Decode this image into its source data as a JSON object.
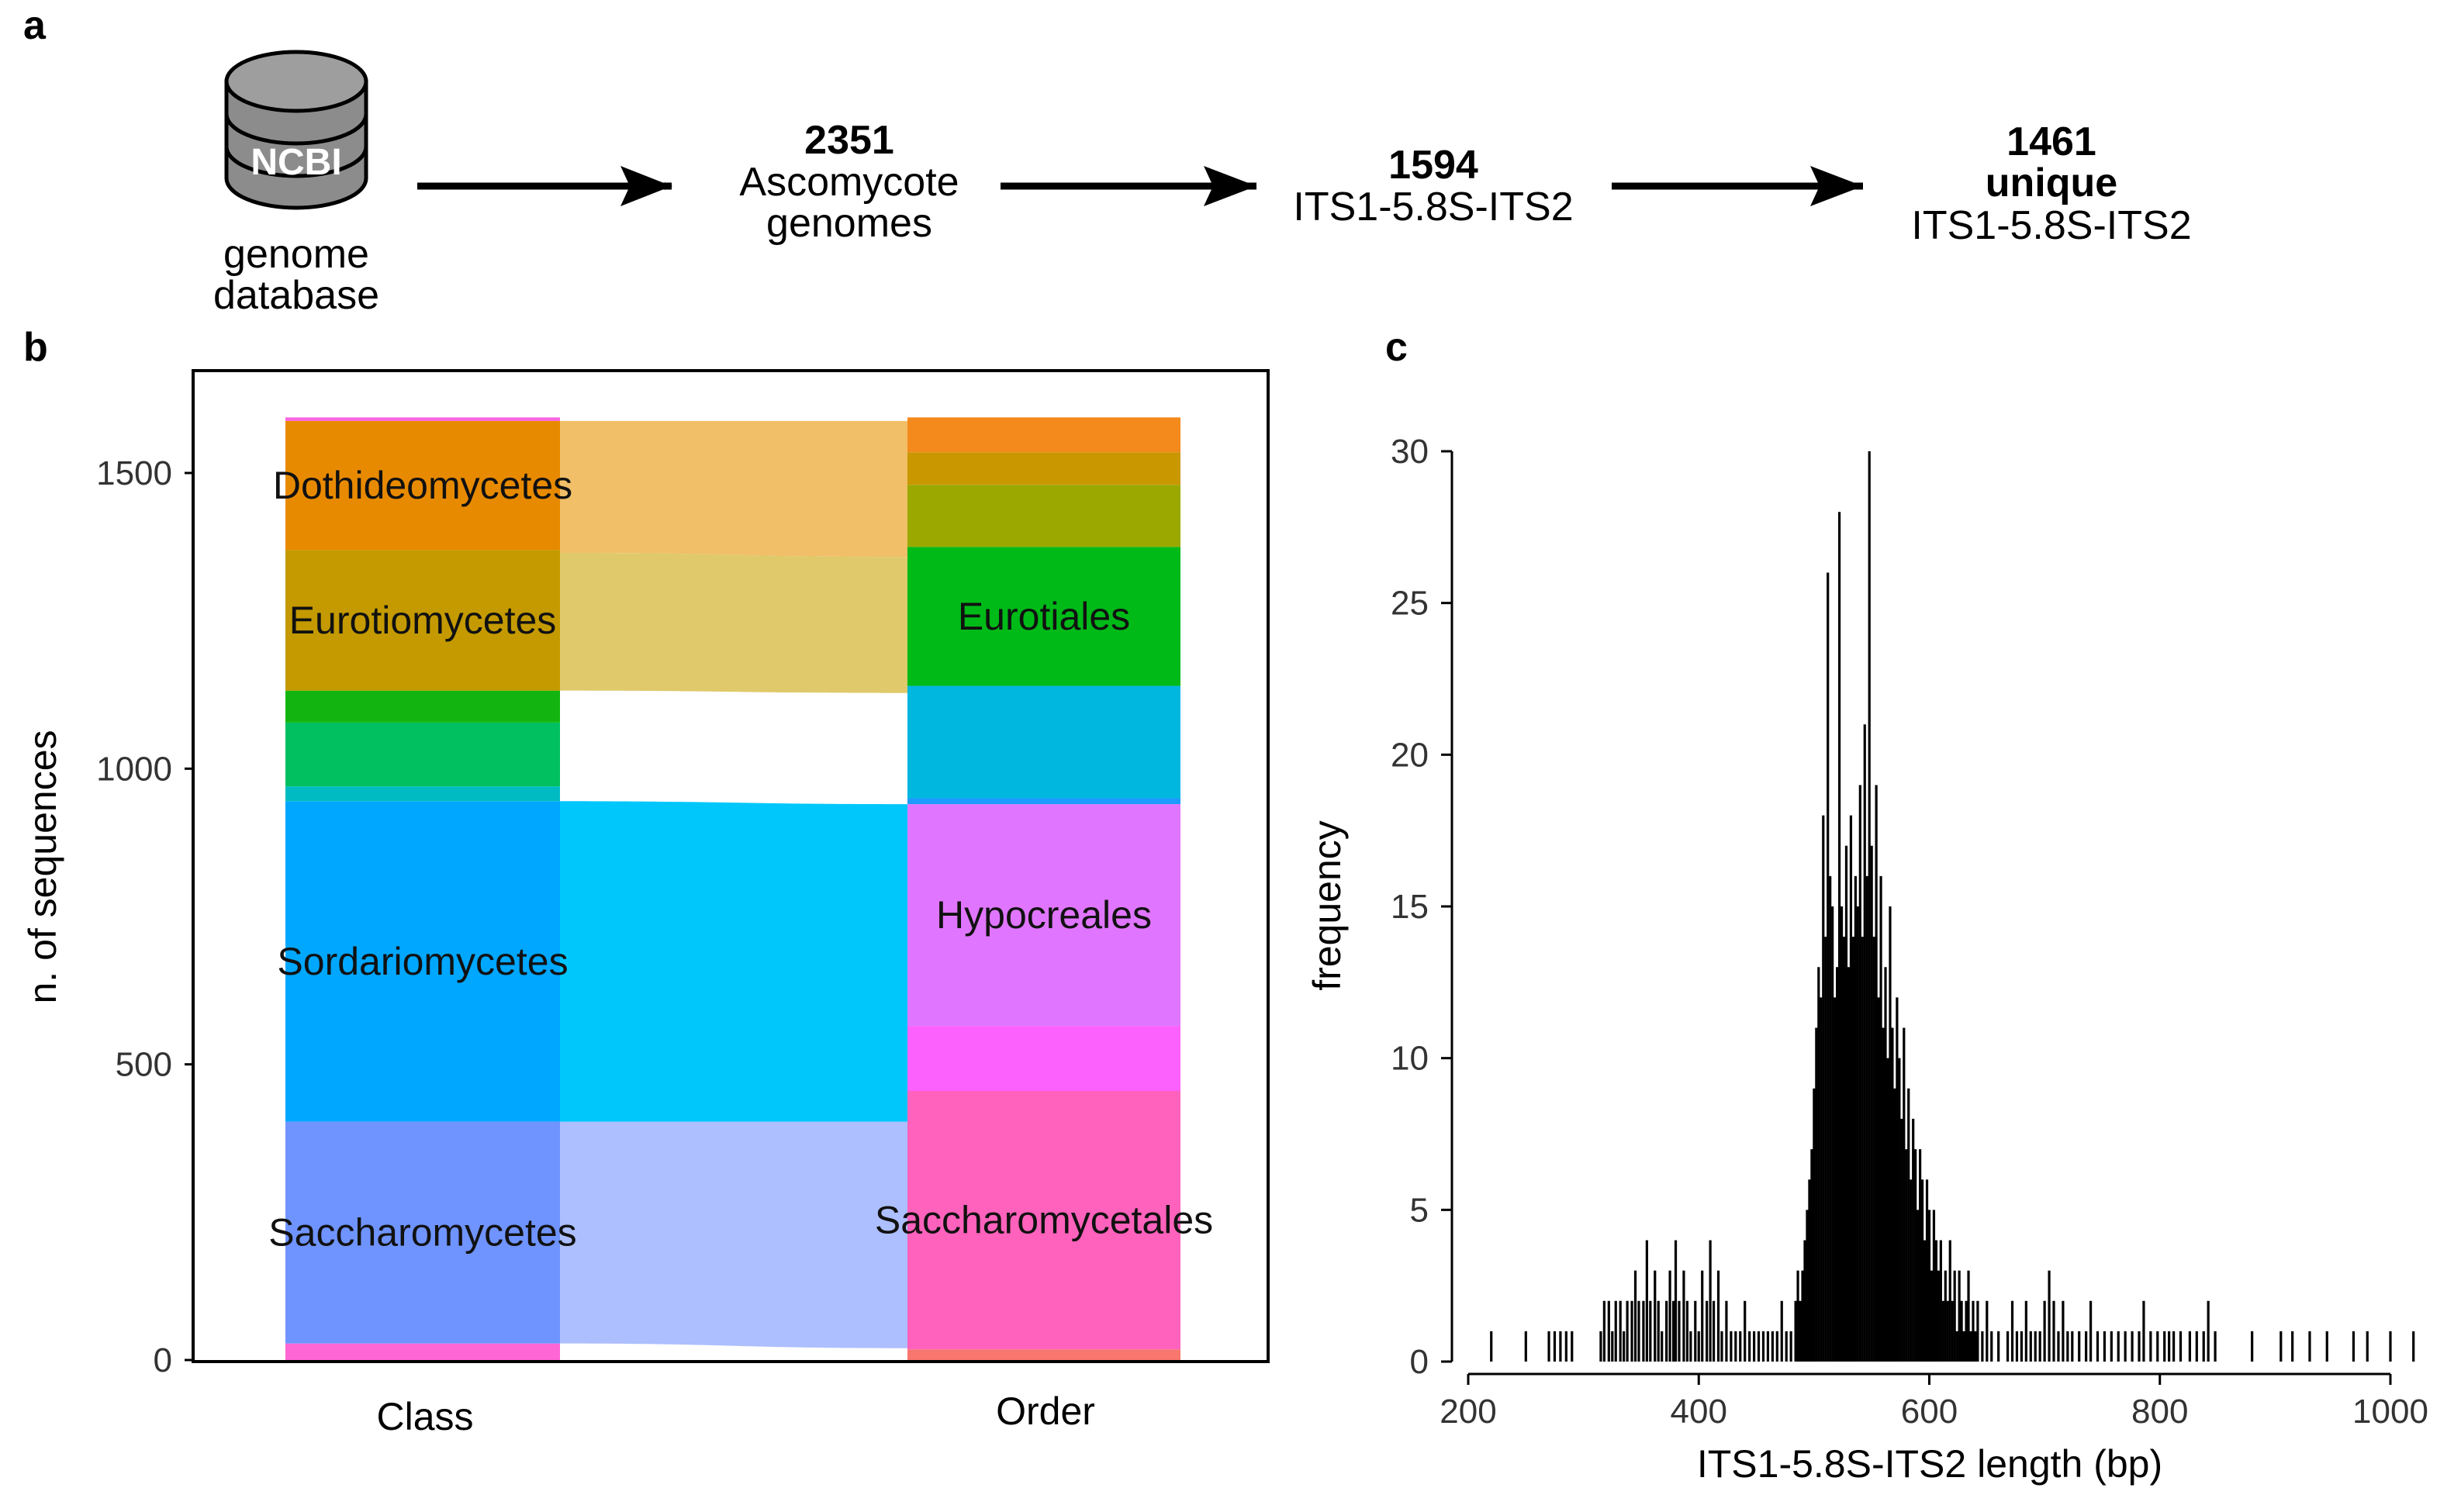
{
  "figure": {
    "panel_a": {
      "letter": "a",
      "db_icon_label": "NCBI",
      "db_caption_line1": "genome",
      "db_caption_line2": "database",
      "step1_number": "2351",
      "step1_line1": "Ascomycote",
      "step1_line2": "genomes",
      "step2_number": "1594",
      "step2_line1": "ITS1-5.8S-ITS2",
      "step3_number": "1461",
      "step3_bold": "unique",
      "step3_line1": "ITS1-5.8S-ITS2"
    },
    "panel_b": {
      "letter": "b"
    },
    "panel_c": {
      "letter": "c"
    }
  },
  "chart_data": [
    {
      "type": "alluvial",
      "panel": "b",
      "title": "",
      "xlabel": "",
      "ylabel": "n. of sequences",
      "ylim": [
        0,
        1600
      ],
      "yticks": [
        0,
        500,
        1000,
        1500
      ],
      "axes": [
        "Class",
        "Order"
      ],
      "class_strata": [
        {
          "name": "",
          "bottom": 0,
          "top": 28,
          "color": "#ff66d5"
        },
        {
          "name": "Saccharomycetes",
          "bottom": 28,
          "top": 403,
          "color": "#6f94ff"
        },
        {
          "name": "Sordariomycetes",
          "bottom": 403,
          "top": 945,
          "color": "#00a7ff"
        },
        {
          "name": "",
          "bottom": 945,
          "top": 970,
          "color": "#00bcc2"
        },
        {
          "name": "",
          "bottom": 970,
          "top": 1078,
          "color": "#00c060"
        },
        {
          "name": "",
          "bottom": 1078,
          "top": 1132,
          "color": "#12b510"
        },
        {
          "name": "Eurotiomycetes",
          "bottom": 1132,
          "top": 1370,
          "color": "#c49a00"
        },
        {
          "name": "Dothideomycetes",
          "bottom": 1370,
          "top": 1588,
          "color": "#e88a00"
        },
        {
          "name": "",
          "bottom": 1588,
          "top": 1594,
          "color": "#f766e3"
        }
      ],
      "order_strata": [
        {
          "name": "",
          "bottom": 0,
          "top": 18,
          "color": "#f8766d"
        },
        {
          "name": "Saccharomycetales",
          "bottom": 18,
          "top": 455,
          "color": "#ff62bc"
        },
        {
          "name": "",
          "bottom": 455,
          "top": 565,
          "color": "#fc61fd"
        },
        {
          "name": "Hypocreales",
          "bottom": 565,
          "top": 940,
          "color": "#e076ff"
        },
        {
          "name": "",
          "bottom": 940,
          "top": 950,
          "color": "#1d9bff"
        },
        {
          "name": "",
          "bottom": 950,
          "top": 1140,
          "color": "#00b7e0"
        },
        {
          "name": "Eurotiales",
          "bottom": 1140,
          "top": 1375,
          "color": "#00ba18"
        },
        {
          "name": "",
          "bottom": 1375,
          "top": 1480,
          "color": "#9aa800"
        },
        {
          "name": "",
          "bottom": 1480,
          "top": 1535,
          "color": "#c99800"
        },
        {
          "name": "",
          "bottom": 1535,
          "top": 1594,
          "color": "#f48a1c"
        }
      ],
      "flows": [
        {
          "from": "Saccharomycetes",
          "left": [
            28,
            403
          ],
          "right": [
            20,
            403
          ],
          "color": "#adbfff"
        },
        {
          "from": "Sordariomycetes",
          "left": [
            403,
            945
          ],
          "right": [
            403,
            940
          ],
          "color": "#00c7fb"
        },
        {
          "from": "Eurotiomycetes",
          "left": [
            1132,
            1365
          ],
          "right": [
            1128,
            1358
          ],
          "color": "#dfc96a"
        },
        {
          "from": "Dothideomycetes",
          "left": [
            1365,
            1588
          ],
          "right": [
            1358,
            1588
          ],
          "color": "#f0bf68"
        }
      ]
    },
    {
      "type": "histogram",
      "panel": "c",
      "title": "",
      "xlabel": "ITS1-5.8S-ITS2 length (bp)",
      "ylabel": "frequency",
      "xlim": [
        200,
        1000
      ],
      "ylim": [
        0,
        30
      ],
      "xticks": [
        200,
        400,
        600,
        800,
        1000
      ],
      "yticks": [
        0,
        5,
        10,
        15,
        20,
        25,
        30
      ],
      "bins": [
        [
          220,
          1
        ],
        [
          250,
          1
        ],
        [
          270,
          1
        ],
        [
          275,
          1
        ],
        [
          280,
          1
        ],
        [
          285,
          1
        ],
        [
          290,
          1
        ],
        [
          315,
          1
        ],
        [
          318,
          2
        ],
        [
          322,
          2
        ],
        [
          325,
          1
        ],
        [
          328,
          2
        ],
        [
          332,
          2
        ],
        [
          335,
          1
        ],
        [
          338,
          2
        ],
        [
          342,
          2
        ],
        [
          345,
          3
        ],
        [
          348,
          2
        ],
        [
          352,
          2
        ],
        [
          355,
          4
        ],
        [
          358,
          2
        ],
        [
          362,
          3
        ],
        [
          365,
          2
        ],
        [
          368,
          1
        ],
        [
          372,
          2
        ],
        [
          375,
          3
        ],
        [
          378,
          2
        ],
        [
          380,
          4
        ],
        [
          383,
          2
        ],
        [
          387,
          3
        ],
        [
          390,
          2
        ],
        [
          393,
          1
        ],
        [
          397,
          2
        ],
        [
          400,
          1
        ],
        [
          403,
          3
        ],
        [
          407,
          2
        ],
        [
          410,
          4
        ],
        [
          413,
          2
        ],
        [
          417,
          3
        ],
        [
          420,
          1
        ],
        [
          424,
          2
        ],
        [
          428,
          1
        ],
        [
          432,
          1
        ],
        [
          436,
          1
        ],
        [
          440,
          2
        ],
        [
          444,
          1
        ],
        [
          448,
          1
        ],
        [
          452,
          1
        ],
        [
          456,
          1
        ],
        [
          460,
          1
        ],
        [
          464,
          1
        ],
        [
          468,
          1
        ],
        [
          472,
          2
        ],
        [
          476,
          1
        ],
        [
          480,
          1
        ],
        [
          484,
          2
        ],
        [
          486,
          3
        ],
        [
          488,
          2
        ],
        [
          490,
          3
        ],
        [
          492,
          4
        ],
        [
          494,
          5
        ],
        [
          496,
          6
        ],
        [
          498,
          7
        ],
        [
          500,
          9
        ],
        [
          502,
          11
        ],
        [
          504,
          13
        ],
        [
          506,
          12
        ],
        [
          508,
          18
        ],
        [
          510,
          14
        ],
        [
          512,
          26
        ],
        [
          514,
          16
        ],
        [
          516,
          15
        ],
        [
          518,
          12
        ],
        [
          520,
          13
        ],
        [
          522,
          28
        ],
        [
          524,
          15
        ],
        [
          526,
          14
        ],
        [
          528,
          17
        ],
        [
          530,
          13
        ],
        [
          532,
          18
        ],
        [
          534,
          14
        ],
        [
          536,
          16
        ],
        [
          538,
          15
        ],
        [
          540,
          19
        ],
        [
          542,
          14
        ],
        [
          544,
          21
        ],
        [
          546,
          16
        ],
        [
          548,
          30
        ],
        [
          550,
          17
        ],
        [
          552,
          14
        ],
        [
          554,
          19
        ],
        [
          556,
          12
        ],
        [
          558,
          16
        ],
        [
          560,
          11
        ],
        [
          562,
          13
        ],
        [
          564,
          10
        ],
        [
          566,
          15
        ],
        [
          568,
          11
        ],
        [
          570,
          9
        ],
        [
          572,
          12
        ],
        [
          574,
          10
        ],
        [
          576,
          8
        ],
        [
          578,
          11
        ],
        [
          580,
          7
        ],
        [
          582,
          9
        ],
        [
          584,
          6
        ],
        [
          586,
          8
        ],
        [
          588,
          7
        ],
        [
          590,
          5
        ],
        [
          592,
          7
        ],
        [
          594,
          6
        ],
        [
          596,
          4
        ],
        [
          598,
          6
        ],
        [
          600,
          5
        ],
        [
          602,
          3
        ],
        [
          604,
          5
        ],
        [
          606,
          4
        ],
        [
          608,
          3
        ],
        [
          610,
          4
        ],
        [
          612,
          2
        ],
        [
          614,
          3
        ],
        [
          616,
          2
        ],
        [
          618,
          4
        ],
        [
          620,
          2
        ],
        [
          622,
          3
        ],
        [
          624,
          1
        ],
        [
          626,
          3
        ],
        [
          628,
          2
        ],
        [
          630,
          1
        ],
        [
          632,
          2
        ],
        [
          634,
          3
        ],
        [
          636,
          1
        ],
        [
          638,
          2
        ],
        [
          640,
          1
        ],
        [
          642,
          2
        ],
        [
          646,
          1
        ],
        [
          650,
          2
        ],
        [
          654,
          1
        ],
        [
          660,
          1
        ],
        [
          668,
          1
        ],
        [
          672,
          2
        ],
        [
          676,
          1
        ],
        [
          680,
          1
        ],
        [
          684,
          2
        ],
        [
          688,
          1
        ],
        [
          692,
          1
        ],
        [
          696,
          1
        ],
        [
          700,
          2
        ],
        [
          704,
          3
        ],
        [
          708,
          2
        ],
        [
          712,
          1
        ],
        [
          716,
          2
        ],
        [
          720,
          1
        ],
        [
          724,
          1
        ],
        [
          730,
          1
        ],
        [
          736,
          1
        ],
        [
          740,
          2
        ],
        [
          746,
          1
        ],
        [
          752,
          1
        ],
        [
          758,
          1
        ],
        [
          764,
          1
        ],
        [
          770,
          1
        ],
        [
          776,
          1
        ],
        [
          782,
          1
        ],
        [
          786,
          2
        ],
        [
          792,
          1
        ],
        [
          798,
          1
        ],
        [
          804,
          1
        ],
        [
          808,
          1
        ],
        [
          812,
          1
        ],
        [
          818,
          1
        ],
        [
          826,
          1
        ],
        [
          832,
          1
        ],
        [
          838,
          1
        ],
        [
          842,
          2
        ],
        [
          848,
          1
        ],
        [
          880,
          1
        ],
        [
          905,
          1
        ],
        [
          915,
          1
        ],
        [
          930,
          1
        ],
        [
          945,
          1
        ],
        [
          968,
          1
        ],
        [
          980,
          1
        ],
        [
          1000,
          1
        ],
        [
          1020,
          1
        ]
      ]
    }
  ]
}
